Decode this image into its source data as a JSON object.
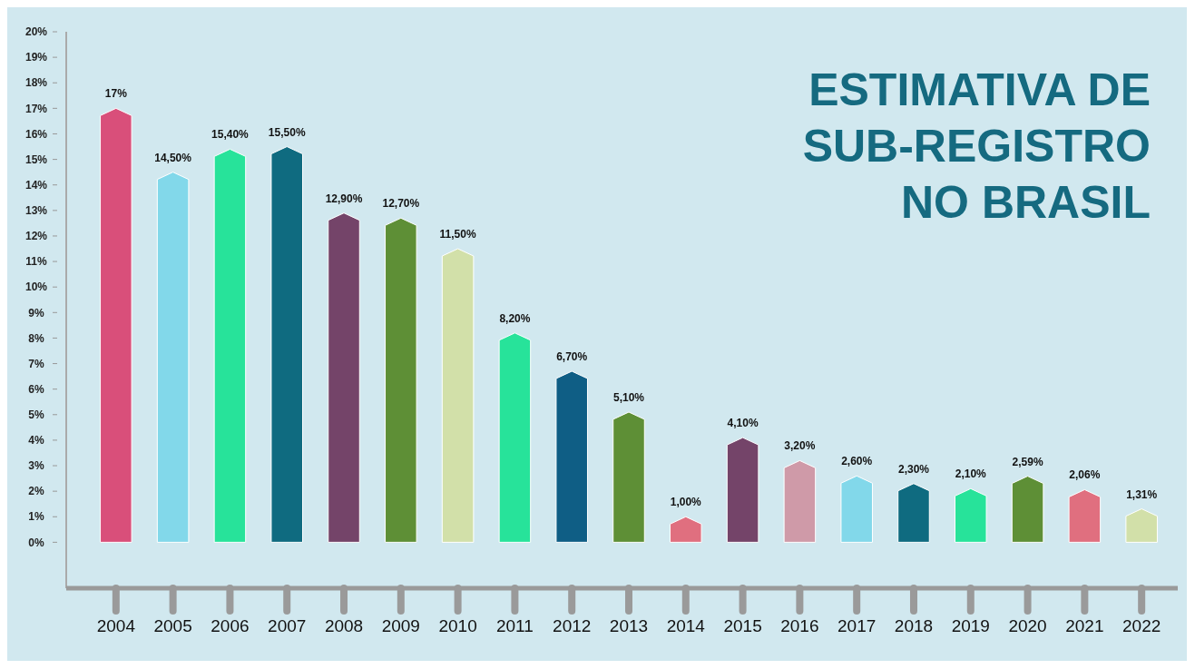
{
  "chart_data": {
    "type": "bar",
    "title": "ESTIMATIVA DE\nSUB-REGISTRO\nNO BRASIL",
    "categories": [
      "2004",
      "2005",
      "2006",
      "2007",
      "2008",
      "2009",
      "2010",
      "2011",
      "2012",
      "2013",
      "2014",
      "2015",
      "2016",
      "2017",
      "2018",
      "2019",
      "2020",
      "2021",
      "2022"
    ],
    "values": [
      17,
      14.5,
      15.4,
      15.5,
      12.9,
      12.7,
      11.5,
      8.2,
      6.7,
      5.1,
      1.0,
      4.1,
      3.2,
      2.6,
      2.3,
      2.1,
      2.59,
      2.06,
      1.31
    ],
    "value_labels": [
      "17%",
      "14,50%",
      "15,40%",
      "15,50%",
      "12,90%",
      "12,70%",
      "11,50%",
      "8,20%",
      "6,70%",
      "5,10%",
      "1,00%",
      "4,10%",
      "3,20%",
      "2,60%",
      "2,30%",
      "2,10%",
      "2,59%",
      "2,06%",
      "1,31%"
    ],
    "colors": [
      "#d94f7a",
      "#82d8ea",
      "#27e39a",
      "#0f6b80",
      "#744469",
      "#5e8f36",
      "#d2e0a9",
      "#27e39a",
      "#0f5e85",
      "#5e8f36",
      "#e06f7f",
      "#744469",
      "#cf9aa8",
      "#82d8ea",
      "#0f6b80",
      "#27e39a",
      "#5e8f36",
      "#e06f7f",
      "#d2e0a9"
    ],
    "ylim": [
      -1.8,
      20
    ],
    "yticks": [
      {
        "value": 0,
        "label": "0%"
      },
      {
        "value": 1,
        "label": "1%"
      },
      {
        "value": 2,
        "label": "2%"
      },
      {
        "value": 3,
        "label": "3%"
      },
      {
        "value": 4,
        "label": "4%"
      },
      {
        "value": 5,
        "label": "5%"
      },
      {
        "value": 6,
        "label": "6%"
      },
      {
        "value": 7,
        "label": "7%"
      },
      {
        "value": 8,
        "label": "8%"
      },
      {
        "value": 9,
        "label": "9%"
      },
      {
        "value": 10,
        "label": "10%"
      },
      {
        "value": 11,
        "label": "11%"
      },
      {
        "value": 12,
        "label": "12%"
      },
      {
        "value": 13,
        "label": "13%"
      },
      {
        "value": 14,
        "label": "14%"
      },
      {
        "value": 15,
        "label": "15%"
      },
      {
        "value": 16,
        "label": "16%"
      },
      {
        "value": 17,
        "label": "17%"
      },
      {
        "value": 18,
        "label": "18%"
      },
      {
        "value": 19,
        "label": "19%"
      },
      {
        "value": 20,
        "label": "20%"
      }
    ],
    "grid": false
  }
}
